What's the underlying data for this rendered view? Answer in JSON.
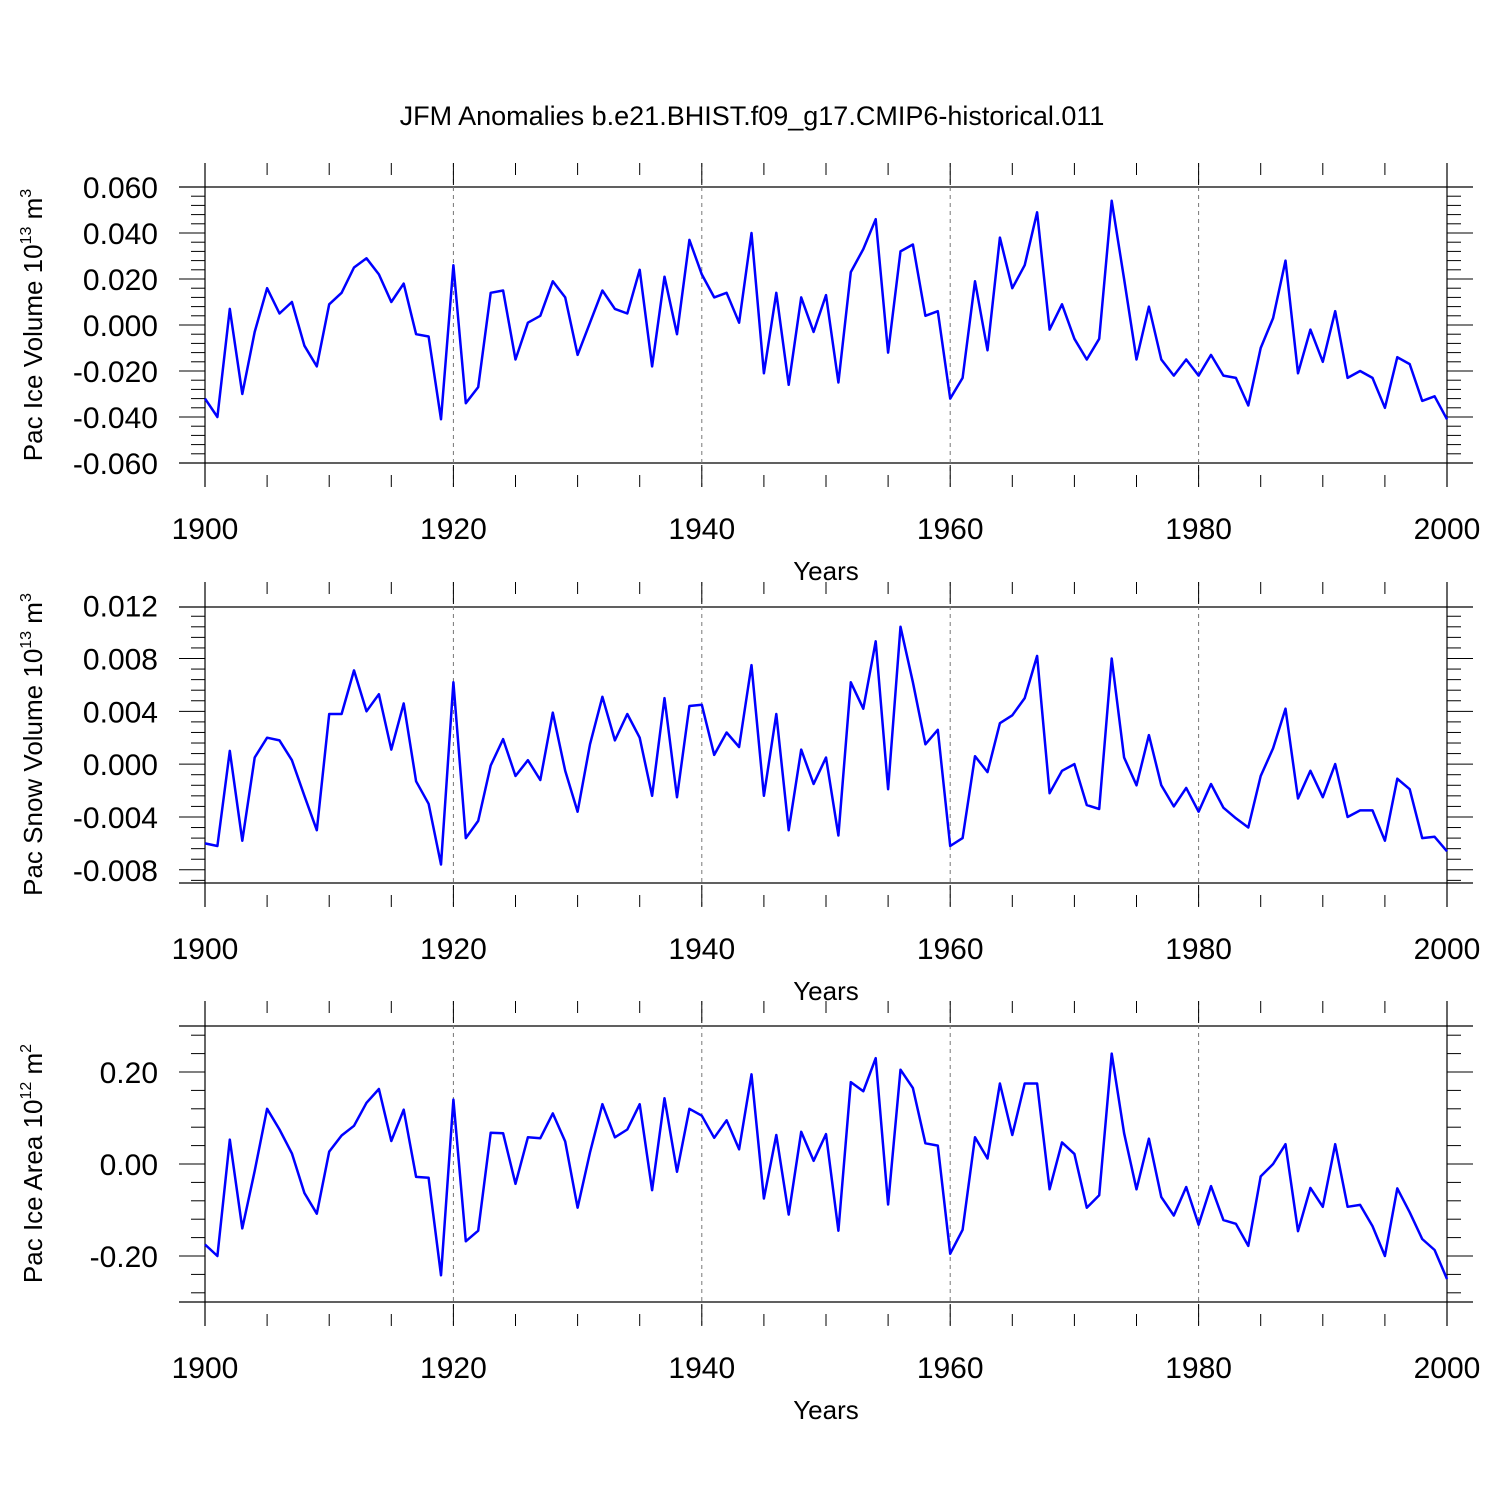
{
  "figure": {
    "title": "JFM Anomalies b.e21.BHIST.f09_g17.CMIP6-historical.011",
    "line_color": "#0000ff"
  },
  "chart_data": [
    {
      "type": "line",
      "ylabel": {
        "text": "Pac Ice Volume 10",
        "exp": "13",
        "unit": " m",
        "unit_exp": "3"
      },
      "xlabel": "Years",
      "xlim": [
        1900,
        2000
      ],
      "ylim": [
        -0.06,
        0.06
      ],
      "x_ticks": [
        1900,
        1920,
        1940,
        1960,
        1980,
        2000
      ],
      "x_tick_labels": [
        "1900",
        "1920",
        "1940",
        "1960",
        "1980",
        "2000"
      ],
      "y_ticks": [
        -0.06,
        -0.04,
        -0.02,
        0.0,
        0.02,
        0.04,
        0.06
      ],
      "y_tick_labels": [
        "-0.060",
        "-0.040",
        "-0.020",
        "0.000",
        "0.020",
        "0.040",
        "0.060"
      ],
      "grid": "dashed vertical at x major ticks",
      "x_start": 1900,
      "values": [
        -0.032,
        -0.04,
        0.007,
        -0.03,
        -0.003,
        0.016,
        0.005,
        0.01,
        -0.009,
        -0.018,
        0.009,
        0.014,
        0.025,
        0.029,
        0.022,
        0.01,
        0.018,
        -0.004,
        -0.005,
        -0.041,
        0.026,
        -0.034,
        -0.027,
        0.014,
        0.015,
        -0.015,
        0.001,
        0.004,
        0.019,
        0.012,
        -0.013,
        0.001,
        0.015,
        0.007,
        0.005,
        0.024,
        -0.018,
        0.021,
        -0.004,
        0.037,
        0.022,
        0.012,
        0.014,
        0.001,
        0.04,
        -0.021,
        0.014,
        -0.026,
        0.012,
        -0.003,
        0.013,
        -0.025,
        0.023,
        0.033,
        0.046,
        -0.012,
        0.032,
        0.035,
        0.004,
        0.006,
        -0.032,
        -0.023,
        0.019,
        -0.011,
        0.038,
        0.016,
        0.026,
        0.049,
        -0.002,
        0.009,
        -0.006,
        -0.015,
        -0.006,
        0.054,
        0.02,
        -0.015,
        0.008,
        -0.015,
        -0.022,
        -0.015,
        -0.022,
        -0.013,
        -0.022,
        -0.023,
        -0.035,
        -0.01,
        0.003,
        0.028,
        -0.021,
        -0.002,
        -0.016,
        0.006,
        -0.023,
        -0.02,
        -0.023,
        -0.036,
        -0.014,
        -0.017,
        -0.033,
        -0.031,
        -0.041
      ]
    },
    {
      "type": "line",
      "ylabel": {
        "text": "Pac Snow Volume 10",
        "exp": "13",
        "unit": " m",
        "unit_exp": "3"
      },
      "xlabel": "Years",
      "xlim": [
        1900,
        2000
      ],
      "ylim": [
        -0.009,
        0.0119
      ],
      "x_ticks": [
        1900,
        1920,
        1940,
        1960,
        1980,
        2000
      ],
      "x_tick_labels": [
        "1900",
        "1920",
        "1940",
        "1960",
        "1980",
        "2000"
      ],
      "y_ticks": [
        -0.008,
        -0.004,
        0.0,
        0.004,
        0.008,
        0.012
      ],
      "y_tick_labels": [
        "-0.008",
        "-0.004",
        "0.000",
        "0.004",
        "0.008",
        "0.012"
      ],
      "grid": "dashed vertical at x major ticks",
      "x_start": 1900,
      "values": [
        -0.006,
        -0.0062,
        0.001,
        -0.0058,
        0.0005,
        0.002,
        0.0018,
        0.0003,
        -0.0024,
        -0.005,
        0.0038,
        0.0038,
        0.0071,
        0.004,
        0.0053,
        0.0011,
        0.0046,
        -0.0013,
        -0.003,
        -0.0076,
        0.0062,
        -0.0056,
        -0.0043,
        -0.0001,
        0.0019,
        -0.0009,
        0.0003,
        -0.0012,
        0.0039,
        -0.0005,
        -0.0036,
        0.0015,
        0.0051,
        0.0018,
        0.0038,
        0.002,
        -0.0024,
        0.005,
        -0.0025,
        0.0044,
        0.0045,
        0.0007,
        0.0024,
        0.0013,
        0.0075,
        -0.0024,
        0.0038,
        -0.005,
        0.0011,
        -0.0015,
        0.0005,
        -0.0054,
        0.0062,
        0.0042,
        0.0093,
        -0.0019,
        0.0104,
        0.0062,
        0.0015,
        0.0026,
        -0.0062,
        -0.0056,
        0.0006,
        -0.0006,
        0.0031,
        0.0037,
        0.005,
        0.0082,
        -0.0022,
        -0.0005,
        0.0,
        -0.0031,
        -0.0034,
        0.008,
        0.0005,
        -0.0016,
        0.0022,
        -0.0016,
        -0.0032,
        -0.0018,
        -0.0036,
        -0.0015,
        -0.0033,
        -0.0041,
        -0.0048,
        -0.0009,
        0.0012,
        0.0042,
        -0.0026,
        -0.0005,
        -0.0025,
        0.0,
        -0.004,
        -0.0035,
        -0.0035,
        -0.0058,
        -0.0011,
        -0.0019,
        -0.0056,
        -0.0055,
        -0.0066
      ]
    },
    {
      "type": "line",
      "ylabel": {
        "text": "Pac Ice Area 10",
        "exp": "12",
        "unit": " m",
        "unit_exp": "2"
      },
      "xlabel": "Years",
      "xlim": [
        1900,
        2000
      ],
      "ylim": [
        -0.3,
        0.3
      ],
      "x_ticks": [
        1900,
        1920,
        1940,
        1960,
        1980,
        2000
      ],
      "x_tick_labels": [
        "1900",
        "1920",
        "1940",
        "1960",
        "1980",
        "2000"
      ],
      "y_ticks": [
        -0.2,
        0.0,
        0.2
      ],
      "y_tick_labels": [
        "-0.20",
        "0.00",
        "0.20"
      ],
      "grid": "dashed vertical at x major ticks",
      "x_start": 1900,
      "values": [
        -0.175,
        -0.2,
        0.053,
        -0.14,
        -0.015,
        0.12,
        0.075,
        0.023,
        -0.063,
        -0.108,
        0.027,
        0.062,
        0.083,
        0.133,
        0.163,
        0.05,
        0.118,
        -0.028,
        -0.03,
        -0.242,
        0.14,
        -0.168,
        -0.145,
        0.068,
        0.067,
        -0.043,
        0.058,
        0.056,
        0.11,
        0.049,
        -0.095,
        0.025,
        0.13,
        0.058,
        0.075,
        0.13,
        -0.057,
        0.143,
        -0.017,
        0.12,
        0.105,
        0.057,
        0.095,
        0.032,
        0.195,
        -0.075,
        0.063,
        -0.11,
        0.07,
        0.007,
        0.065,
        -0.145,
        0.178,
        0.158,
        0.23,
        -0.088,
        0.205,
        0.165,
        0.045,
        0.04,
        -0.195,
        -0.143,
        0.058,
        0.012,
        0.175,
        0.063,
        0.175,
        0.175,
        -0.055,
        0.047,
        0.022,
        -0.095,
        -0.068,
        0.24,
        0.067,
        -0.055,
        0.055,
        -0.072,
        -0.112,
        -0.05,
        -0.132,
        -0.048,
        -0.122,
        -0.13,
        -0.178,
        -0.027,
        0.0,
        0.043,
        -0.146,
        -0.052,
        -0.093,
        0.043,
        -0.093,
        -0.089,
        -0.135,
        -0.2,
        -0.053,
        -0.105,
        -0.163,
        -0.187,
        -0.25
      ]
    }
  ]
}
